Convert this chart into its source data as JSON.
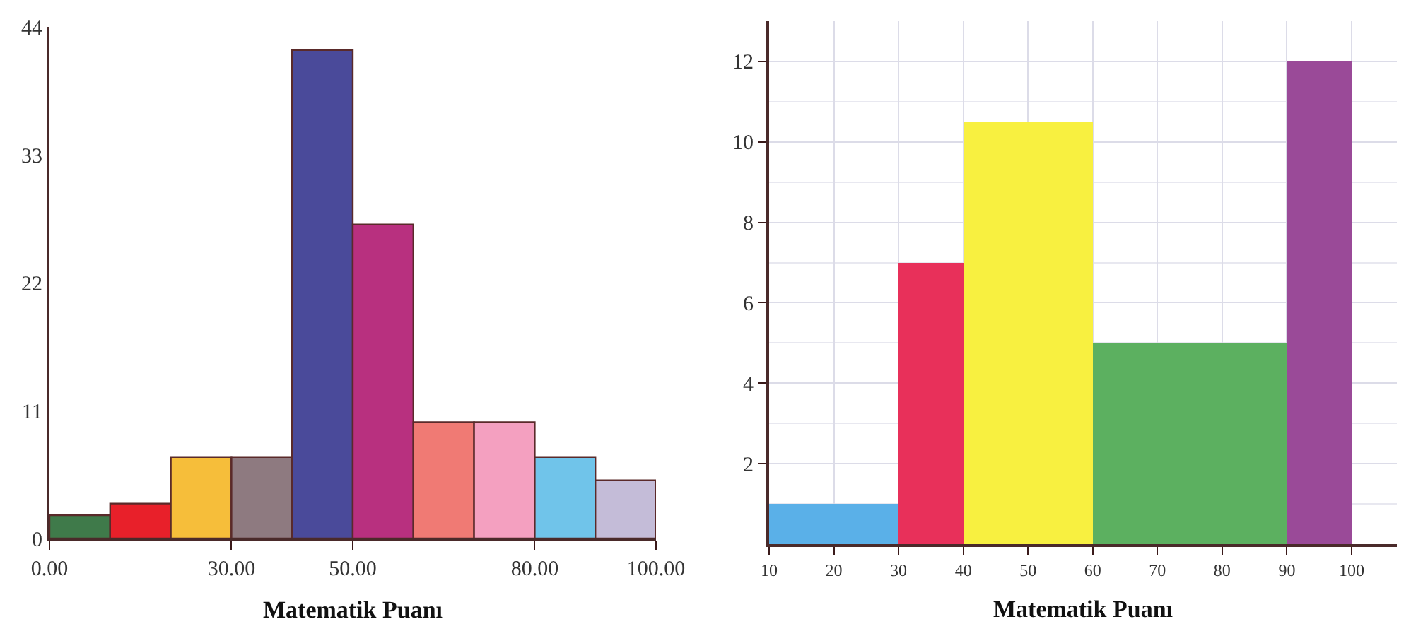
{
  "chart_data": [
    {
      "type": "histogram",
      "xlabel": "Matematik Puanı",
      "bins": [
        0,
        10,
        20,
        30,
        40,
        50,
        60,
        70,
        80,
        90,
        100
      ],
      "values": [
        2,
        3,
        7,
        7,
        42,
        27,
        10,
        10,
        7,
        5
      ],
      "colors": [
        "#3f7a4a",
        "#e8202a",
        "#f6be3a",
        "#8e7a80",
        "#4a4a9a",
        "#b8307f",
        "#f07a74",
        "#f4a0c0",
        "#70c4ea",
        "#c4bcd8"
      ],
      "xlim": [
        0,
        100
      ],
      "xticks": [
        {
          "value": 0,
          "label": "0.00"
        },
        {
          "value": 30,
          "label": "30.00"
        },
        {
          "value": 50,
          "label": "50.00"
        },
        {
          "value": 80,
          "label": "80.00"
        },
        {
          "value": 100,
          "label": "100.00"
        }
      ],
      "ylim": [
        0,
        44
      ],
      "yticks": [
        0,
        11,
        22,
        33,
        44
      ],
      "grid": false
    },
    {
      "type": "histogram",
      "xlabel": "Matematik Puanı",
      "bins": [
        10,
        30,
        40,
        60,
        90,
        100
      ],
      "values": [
        1,
        7,
        10.5,
        5,
        12
      ],
      "colors": [
        "#5ab0e8",
        "#e8305a",
        "#f8f040",
        "#5cb060",
        "#9a4a98"
      ],
      "xlim": [
        10,
        107
      ],
      "xticks": [
        10,
        20,
        30,
        40,
        50,
        60,
        70,
        80,
        90,
        100
      ],
      "ylim": [
        0,
        13
      ],
      "yticks": [
        2,
        4,
        6,
        8,
        10,
        12
      ],
      "grid": true
    }
  ]
}
